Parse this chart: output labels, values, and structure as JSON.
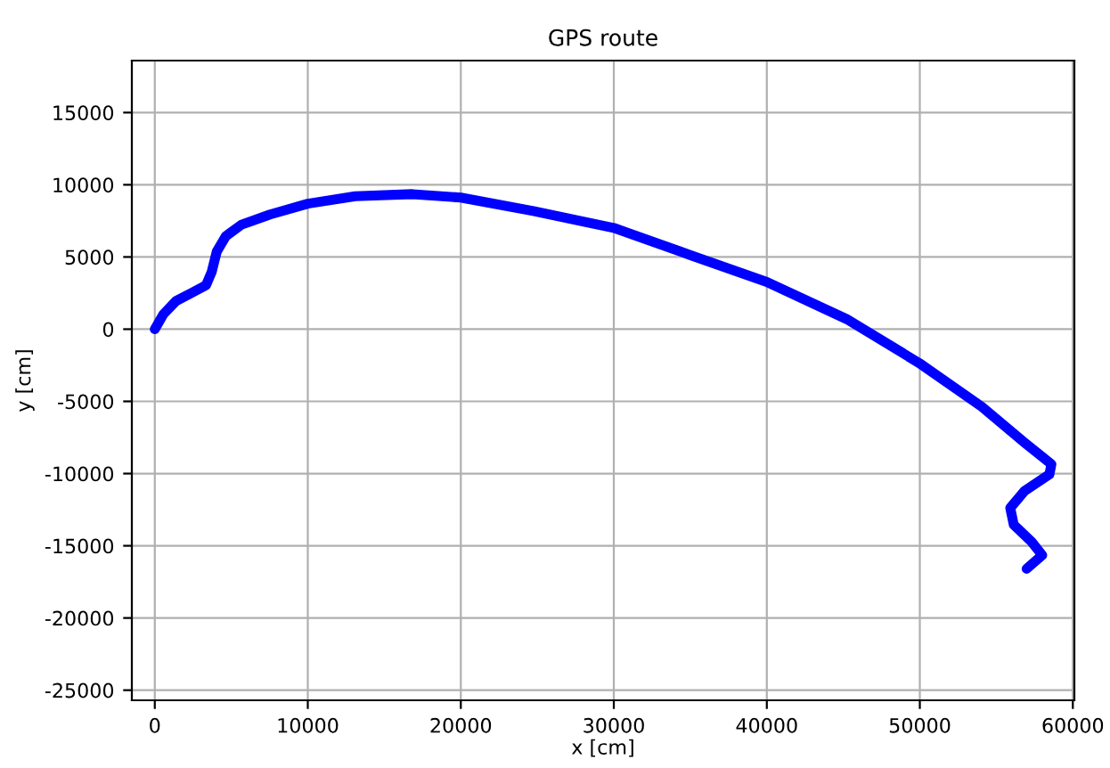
{
  "chart_data": {
    "type": "line",
    "title": "GPS route",
    "xlabel": "x [cm]",
    "ylabel": "y [cm]",
    "x": [
      0,
      560,
      1400,
      2420,
      3350,
      3720,
      4050,
      4650,
      5670,
      7530,
      10000,
      13100,
      16840,
      20000,
      24740,
      30000,
      34980,
      40000,
      45210,
      49950,
      54050,
      56840,
      58600,
      58470,
      56840,
      55910,
      56140,
      57300,
      58000,
      56980
    ],
    "series": [
      {
        "color": "#0000ff",
        "values": [
          0,
          1030,
          1960,
          2520,
          3040,
          3970,
          5370,
          6450,
          7240,
          7940,
          8690,
          9210,
          9350,
          9110,
          8180,
          7010,
          5140,
          3270,
          700,
          -2340,
          -5370,
          -7850,
          -9350,
          -10050,
          -11210,
          -12380,
          -13550,
          -14720,
          -15650,
          -16590
        ]
      }
    ],
    "xlim": [
      -1500,
      60100
    ],
    "ylim": [
      -25700,
      18600
    ],
    "xticks": [
      0,
      10000,
      20000,
      30000,
      40000,
      50000,
      60000
    ],
    "yticks": [
      -25000,
      -20000,
      -15000,
      -10000,
      -5000,
      0,
      5000,
      10000,
      15000
    ],
    "grid": true,
    "line_style": "solid",
    "legend": false
  }
}
